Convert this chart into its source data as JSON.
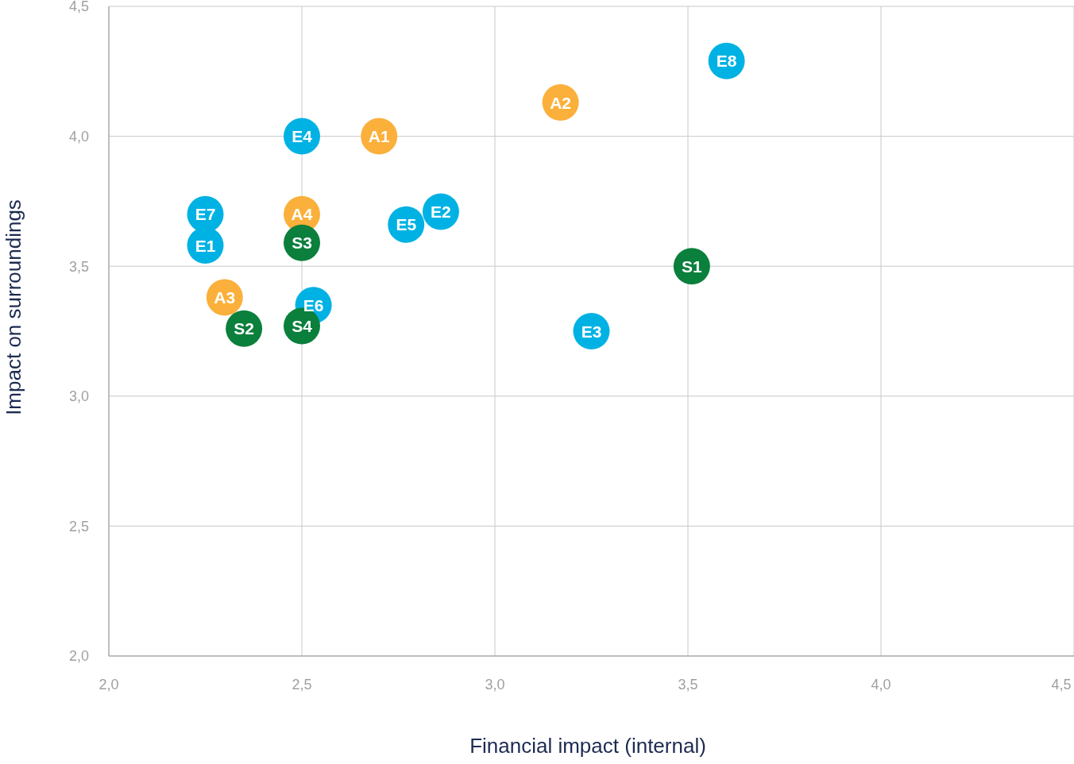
{
  "chart_data": {
    "type": "scatter",
    "xlabel": "Financial impact (internal)",
    "ylabel": "Impact on surroundings",
    "xlim": [
      2.0,
      4.5
    ],
    "ylim": [
      2.0,
      4.5
    ],
    "xticks": [
      {
        "value": 2.0,
        "label": "2,0"
      },
      {
        "value": 2.5,
        "label": "2,5"
      },
      {
        "value": 3.0,
        "label": "3,0"
      },
      {
        "value": 3.5,
        "label": "3,5"
      },
      {
        "value": 4.0,
        "label": "4,0"
      },
      {
        "value": 4.5,
        "label": "4,5"
      }
    ],
    "yticks": [
      {
        "value": 2.0,
        "label": "2,0"
      },
      {
        "value": 2.5,
        "label": "2,5"
      },
      {
        "value": 3.0,
        "label": "3,0"
      },
      {
        "value": 3.5,
        "label": "3,5"
      },
      {
        "value": 4.0,
        "label": "4,0"
      },
      {
        "value": 4.5,
        "label": "4,5"
      }
    ],
    "grid": true,
    "series": [
      {
        "color": "#00b2e3",
        "x": [
          3.6,
          2.5,
          2.25,
          2.86,
          2.77,
          2.25,
          2.53,
          3.25
        ],
        "values": [
          4.29,
          4.0,
          3.7,
          3.71,
          3.66,
          3.58,
          3.35,
          3.25
        ]
      },
      {
        "color": "#fbb03b",
        "x": [
          3.17,
          2.7,
          2.5,
          2.3
        ],
        "values": [
          4.13,
          4.0,
          3.7,
          3.38
        ]
      },
      {
        "color": "#0b7f3c",
        "x": [
          3.51,
          2.5,
          2.35,
          2.5
        ],
        "values": [
          3.5,
          3.59,
          3.26,
          3.27
        ]
      }
    ],
    "annotations": [
      {
        "text": "E8",
        "x": 3.6,
        "y": 4.29
      },
      {
        "text": "E4",
        "x": 2.5,
        "y": 4.0
      },
      {
        "text": "E7",
        "x": 2.25,
        "y": 3.7
      },
      {
        "text": "E2",
        "x": 2.86,
        "y": 3.71
      },
      {
        "text": "E5",
        "x": 2.77,
        "y": 3.66
      },
      {
        "text": "E1",
        "x": 2.25,
        "y": 3.58
      },
      {
        "text": "E6",
        "x": 2.53,
        "y": 3.35
      },
      {
        "text": "E3",
        "x": 3.25,
        "y": 3.25
      },
      {
        "text": "A2",
        "x": 3.17,
        "y": 4.13
      },
      {
        "text": "A1",
        "x": 2.7,
        "y": 4.0
      },
      {
        "text": "A4",
        "x": 2.5,
        "y": 3.7
      },
      {
        "text": "A3",
        "x": 2.3,
        "y": 3.38
      },
      {
        "text": "S1",
        "x": 3.51,
        "y": 3.5
      },
      {
        "text": "S3",
        "x": 2.5,
        "y": 3.59
      },
      {
        "text": "S2",
        "x": 2.35,
        "y": 3.26
      },
      {
        "text": "S4",
        "x": 2.5,
        "y": 3.27
      }
    ]
  }
}
